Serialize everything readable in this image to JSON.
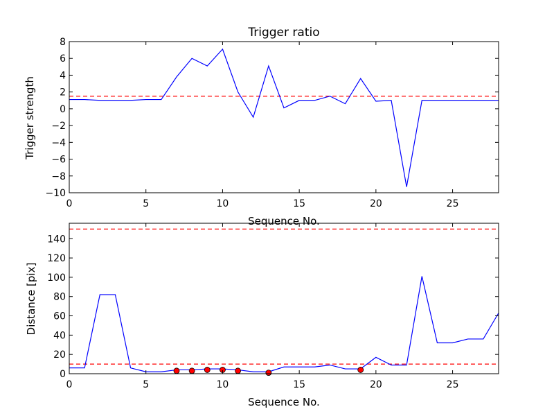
{
  "chart_data": [
    {
      "type": "line",
      "title": "Trigger ratio",
      "xlabel": "Sequence No.",
      "ylabel": "Trigger strength",
      "xlim": [
        0,
        28
      ],
      "ylim": [
        -10,
        8
      ],
      "xticks": [
        0,
        5,
        10,
        15,
        20,
        25
      ],
      "yticks": [
        -10,
        -8,
        -6,
        -4,
        -2,
        0,
        2,
        4,
        6,
        8
      ],
      "xtick_labels": [
        "0",
        "5",
        "10",
        "15",
        "20",
        "25"
      ],
      "ytick_labels": [
        "−10",
        "−8",
        "−6",
        "−4",
        "−2",
        "0",
        "2",
        "4",
        "6",
        "8"
      ],
      "grid": false,
      "series": [
        {
          "color": "#0000ff",
          "style": "solid",
          "x": [
            0,
            1,
            2,
            3,
            4,
            5,
            6,
            7,
            8,
            9,
            10,
            11,
            12,
            13,
            14,
            15,
            16,
            17,
            18,
            19,
            20,
            21,
            22,
            23,
            24,
            25,
            26,
            27,
            28
          ],
          "values": [
            1.1,
            1.1,
            1.0,
            1.0,
            1.0,
            1.1,
            1.1,
            3.8,
            6.0,
            5.1,
            7.1,
            2.0,
            -1.0,
            5.1,
            0.1,
            1.0,
            1.0,
            1.5,
            0.6,
            3.6,
            0.9,
            1.0,
            -9.3,
            1.0,
            1.0,
            1.0,
            1.0,
            1.0,
            1.0
          ]
        }
      ],
      "hlines": [
        {
          "y": 1.5,
          "color": "#ff0000",
          "style": "dashed"
        }
      ]
    },
    {
      "type": "line",
      "title": "",
      "xlabel": "Sequence No.",
      "ylabel": "Distance [pix]",
      "xlim": [
        0,
        28
      ],
      "ylim": [
        0,
        156
      ],
      "xticks": [
        0,
        5,
        10,
        15,
        20,
        25
      ],
      "yticks": [
        0,
        20,
        40,
        60,
        80,
        100,
        120,
        140
      ],
      "xtick_labels": [
        "0",
        "5",
        "10",
        "15",
        "20",
        "25"
      ],
      "ytick_labels": [
        "0",
        "20",
        "40",
        "60",
        "80",
        "100",
        "120",
        "140"
      ],
      "grid": false,
      "series": [
        {
          "color": "#0000ff",
          "style": "solid",
          "x": [
            0,
            1,
            2,
            3,
            4,
            5,
            6,
            7,
            8,
            9,
            10,
            11,
            12,
            13,
            14,
            15,
            16,
            17,
            18,
            19,
            20,
            21,
            22,
            23,
            24,
            25,
            26,
            27,
            28
          ],
          "values": [
            6,
            6,
            82,
            82,
            6,
            2,
            2,
            4,
            4,
            5,
            5,
            4,
            2,
            2,
            7,
            7,
            7,
            9,
            5,
            5,
            17,
            9,
            9,
            101,
            32,
            32,
            36,
            36,
            63
          ]
        }
      ],
      "markers": {
        "color": "#ff0000",
        "x": [
          7,
          8,
          9,
          10,
          11,
          13,
          19
        ],
        "values": [
          3,
          3,
          4,
          4,
          3,
          1,
          4
        ]
      },
      "hlines": [
        {
          "y": 150,
          "color": "#ff0000",
          "style": "dashed"
        },
        {
          "y": 10,
          "color": "#ff0000",
          "style": "dashed"
        }
      ]
    }
  ]
}
